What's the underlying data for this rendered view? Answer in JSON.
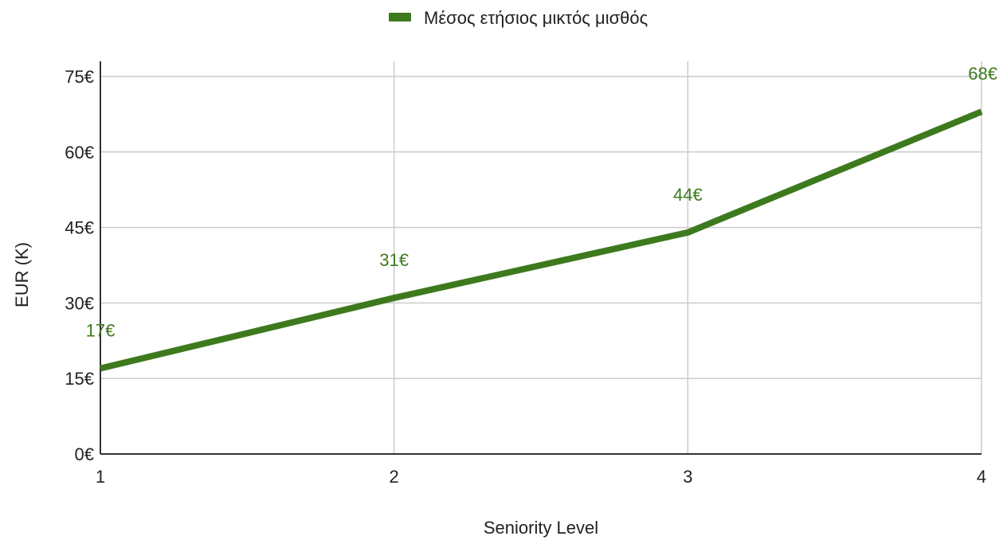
{
  "chart_data": {
    "type": "line",
    "x": [
      1,
      2,
      3,
      4
    ],
    "series": [
      {
        "name": "Μέσος ετήσιος μικτός μισθός",
        "values": [
          17,
          31,
          44,
          68
        ],
        "data_labels": [
          "17€",
          "31€",
          "44€",
          "68€"
        ],
        "color": "#3d7a1e"
      }
    ],
    "xlabel": "Seniority Level",
    "ylabel": "EUR (K)",
    "xlim": [
      1,
      4
    ],
    "ylim": [
      0,
      78
    ],
    "x_ticks": [
      1,
      2,
      3,
      4
    ],
    "x_tick_labels": [
      "1",
      "2",
      "3",
      "4"
    ],
    "y_ticks": [
      0,
      15,
      30,
      45,
      60,
      75
    ],
    "y_tick_labels": [
      "0€",
      "15€",
      "30€",
      "45€",
      "60€",
      "75€"
    ],
    "grid": true,
    "legend_position": "top-center"
  }
}
